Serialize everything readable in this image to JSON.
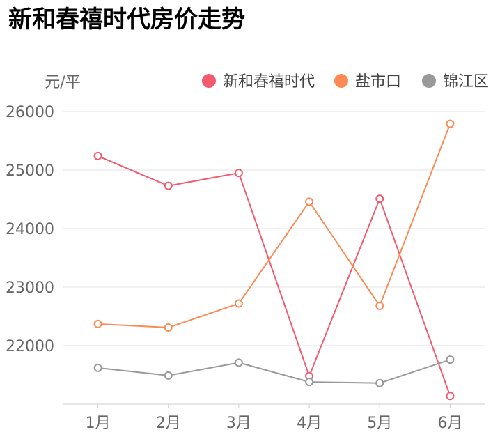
{
  "title": "新和春禧时代房价走势",
  "chart_data": {
    "type": "line",
    "title": "新和春禧时代房价走势",
    "ylabel": "元/平",
    "xlabel": "",
    "categories": [
      "1月",
      "2月",
      "3月",
      "4月",
      "5月",
      "6月"
    ],
    "ylim": [
      21000,
      26000
    ],
    "yticks": [
      22000,
      23000,
      24000,
      25000,
      26000
    ],
    "grid": true,
    "legend_position": "top-right",
    "series": [
      {
        "name": "新和春禧时代",
        "color": "#f25a6e",
        "values": [
          25240,
          24730,
          24950,
          21480,
          24510,
          21140
        ]
      },
      {
        "name": "盐市口",
        "color": "#fb8a55",
        "values": [
          22370,
          22310,
          22720,
          24460,
          22680,
          25790
        ]
      },
      {
        "name": "锦江区",
        "color": "#999999",
        "values": [
          21620,
          21490,
          21710,
          21380,
          21360,
          21760
        ]
      }
    ]
  }
}
